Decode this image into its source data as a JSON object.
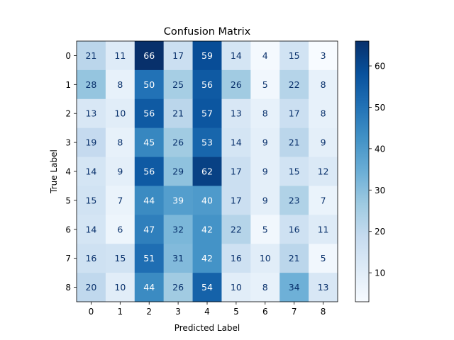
{
  "chart_data": {
    "type": "heatmap",
    "title": "Confusion Matrix",
    "xlabel": "Predicted Label",
    "ylabel": "True Label",
    "x_categories": [
      "0",
      "1",
      "2",
      "3",
      "4",
      "5",
      "6",
      "7",
      "8"
    ],
    "y_categories": [
      "0",
      "1",
      "2",
      "3",
      "4",
      "5",
      "6",
      "7",
      "8"
    ],
    "values": [
      [
        21,
        11,
        66,
        17,
        59,
        14,
        4,
        15,
        3
      ],
      [
        28,
        8,
        50,
        25,
        56,
        26,
        5,
        22,
        8
      ],
      [
        13,
        10,
        56,
        21,
        57,
        13,
        8,
        17,
        8
      ],
      [
        19,
        8,
        45,
        26,
        53,
        14,
        9,
        21,
        9
      ],
      [
        14,
        9,
        56,
        29,
        62,
        17,
        9,
        15,
        12
      ],
      [
        15,
        7,
        44,
        39,
        40,
        17,
        9,
        23,
        7
      ],
      [
        14,
        6,
        47,
        32,
        42,
        22,
        5,
        16,
        11
      ],
      [
        16,
        15,
        51,
        31,
        42,
        16,
        10,
        21,
        5
      ],
      [
        20,
        10,
        44,
        26,
        54,
        10,
        8,
        34,
        13
      ]
    ],
    "colormap": "Blues",
    "color_range": [
      3,
      66
    ],
    "colorbar_ticks": [
      10,
      20,
      30,
      40,
      50,
      60
    ]
  }
}
